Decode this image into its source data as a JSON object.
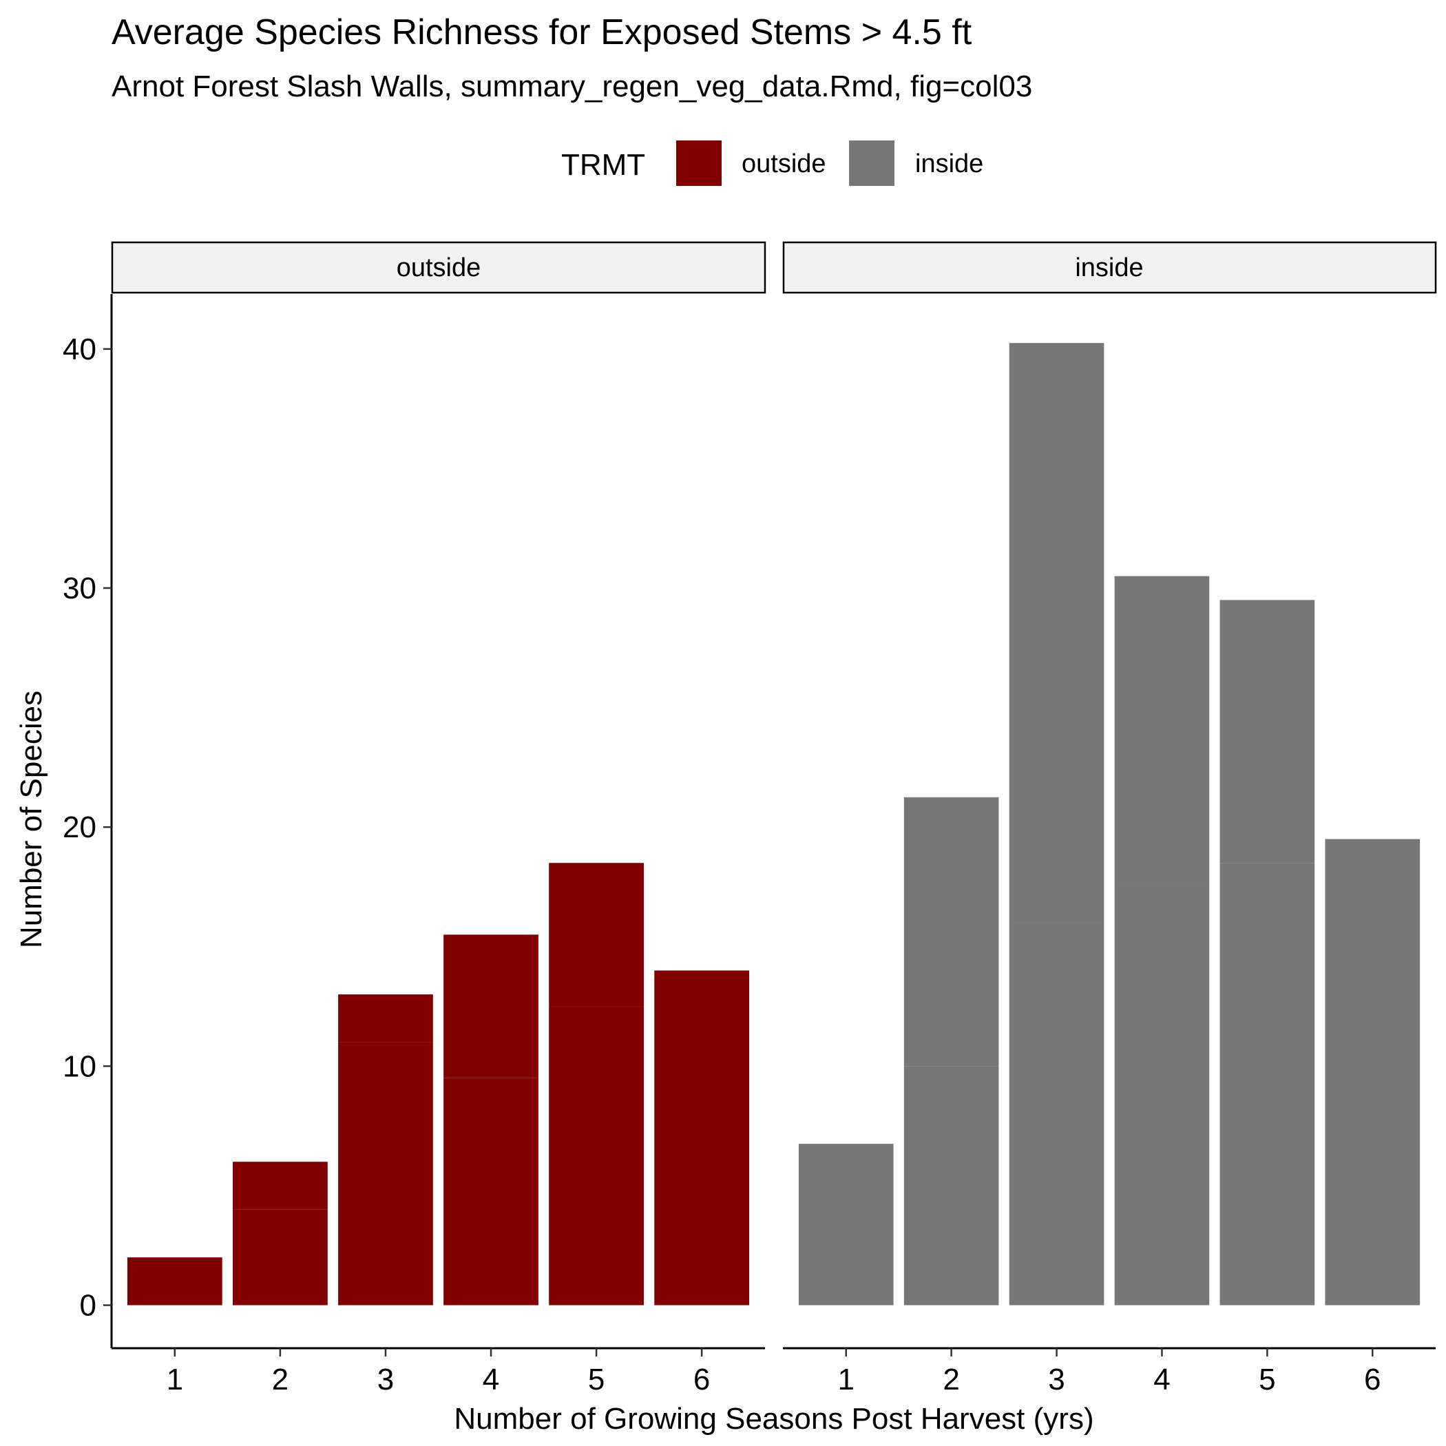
{
  "chart_data": {
    "type": "bar",
    "title": "Average Species Richness for Exposed Stems > 4.5 ft",
    "subtitle": "Arnot Forest Slash Walls, summary_regen_veg_data.Rmd, fig=col03",
    "xlabel": "Number of Growing Seasons Post Harvest (yrs)",
    "ylabel": "Number of Species",
    "ylim": [
      -1.8,
      42.3
    ],
    "yticks": [
      0,
      10,
      20,
      30,
      40
    ],
    "categories": [
      "1",
      "2",
      "3",
      "4",
      "5",
      "6"
    ],
    "grid": false,
    "legend": {
      "title": "TRMT",
      "position": "top",
      "entries": [
        {
          "label": "outside",
          "color": "#800000"
        },
        {
          "label": "inside",
          "color": "#777777"
        }
      ]
    },
    "facets": [
      {
        "label": "outside",
        "color": "#800000",
        "stacked_segments": [
          [
            2
          ],
          [
            4,
            2
          ],
          [
            11,
            2
          ],
          [
            9.5,
            6
          ],
          [
            12.5,
            6
          ],
          [
            14
          ]
        ],
        "values": [
          2,
          6,
          13,
          15.5,
          18.5,
          14
        ]
      },
      {
        "label": "inside",
        "color": "#777777",
        "stacked_segments": [
          [
            6.75
          ],
          [
            10,
            11.25
          ],
          [
            16,
            24.25
          ],
          [
            17.5,
            13
          ],
          [
            18.5,
            11
          ],
          [
            19.5
          ]
        ],
        "values": [
          6.75,
          21.25,
          40.25,
          30.5,
          29.5,
          19.5
        ]
      }
    ]
  }
}
